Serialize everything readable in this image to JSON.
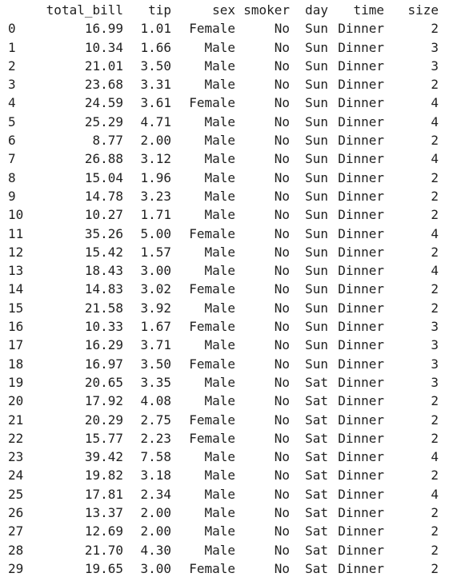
{
  "columns": [
    "total_bill",
    "tip",
    "sex",
    "smoker",
    "day",
    "time",
    "size"
  ],
  "rows": [
    [
      "0",
      "16.99",
      "1.01",
      "Female",
      "No",
      "Sun",
      "Dinner",
      "2"
    ],
    [
      "1",
      "10.34",
      "1.66",
      "Male",
      "No",
      "Sun",
      "Dinner",
      "3"
    ],
    [
      "2",
      "21.01",
      "3.50",
      "Male",
      "No",
      "Sun",
      "Dinner",
      "3"
    ],
    [
      "3",
      "23.68",
      "3.31",
      "Male",
      "No",
      "Sun",
      "Dinner",
      "2"
    ],
    [
      "4",
      "24.59",
      "3.61",
      "Female",
      "No",
      "Sun",
      "Dinner",
      "4"
    ],
    [
      "5",
      "25.29",
      "4.71",
      "Male",
      "No",
      "Sun",
      "Dinner",
      "4"
    ],
    [
      "6",
      "8.77",
      "2.00",
      "Male",
      "No",
      "Sun",
      "Dinner",
      "2"
    ],
    [
      "7",
      "26.88",
      "3.12",
      "Male",
      "No",
      "Sun",
      "Dinner",
      "4"
    ],
    [
      "8",
      "15.04",
      "1.96",
      "Male",
      "No",
      "Sun",
      "Dinner",
      "2"
    ],
    [
      "9",
      "14.78",
      "3.23",
      "Male",
      "No",
      "Sun",
      "Dinner",
      "2"
    ],
    [
      "10",
      "10.27",
      "1.71",
      "Male",
      "No",
      "Sun",
      "Dinner",
      "2"
    ],
    [
      "11",
      "35.26",
      "5.00",
      "Female",
      "No",
      "Sun",
      "Dinner",
      "4"
    ],
    [
      "12",
      "15.42",
      "1.57",
      "Male",
      "No",
      "Sun",
      "Dinner",
      "2"
    ],
    [
      "13",
      "18.43",
      "3.00",
      "Male",
      "No",
      "Sun",
      "Dinner",
      "4"
    ],
    [
      "14",
      "14.83",
      "3.02",
      "Female",
      "No",
      "Sun",
      "Dinner",
      "2"
    ],
    [
      "15",
      "21.58",
      "3.92",
      "Male",
      "No",
      "Sun",
      "Dinner",
      "2"
    ],
    [
      "16",
      "10.33",
      "1.67",
      "Female",
      "No",
      "Sun",
      "Dinner",
      "3"
    ],
    [
      "17",
      "16.29",
      "3.71",
      "Male",
      "No",
      "Sun",
      "Dinner",
      "3"
    ],
    [
      "18",
      "16.97",
      "3.50",
      "Female",
      "No",
      "Sun",
      "Dinner",
      "3"
    ],
    [
      "19",
      "20.65",
      "3.35",
      "Male",
      "No",
      "Sat",
      "Dinner",
      "3"
    ],
    [
      "20",
      "17.92",
      "4.08",
      "Male",
      "No",
      "Sat",
      "Dinner",
      "2"
    ],
    [
      "21",
      "20.29",
      "2.75",
      "Female",
      "No",
      "Sat",
      "Dinner",
      "2"
    ],
    [
      "22",
      "15.77",
      "2.23",
      "Female",
      "No",
      "Sat",
      "Dinner",
      "2"
    ],
    [
      "23",
      "39.42",
      "7.58",
      "Male",
      "No",
      "Sat",
      "Dinner",
      "4"
    ],
    [
      "24",
      "19.82",
      "3.18",
      "Male",
      "No",
      "Sat",
      "Dinner",
      "2"
    ],
    [
      "25",
      "17.81",
      "2.34",
      "Male",
      "No",
      "Sat",
      "Dinner",
      "4"
    ],
    [
      "26",
      "13.37",
      "2.00",
      "Male",
      "No",
      "Sat",
      "Dinner",
      "2"
    ],
    [
      "27",
      "12.69",
      "2.00",
      "Male",
      "No",
      "Sat",
      "Dinner",
      "2"
    ],
    [
      "28",
      "21.70",
      "4.30",
      "Male",
      "No",
      "Sat",
      "Dinner",
      "2"
    ],
    [
      "29",
      "19.65",
      "3.00",
      "Female",
      "No",
      "Sat",
      "Dinner",
      "2"
    ]
  ]
}
